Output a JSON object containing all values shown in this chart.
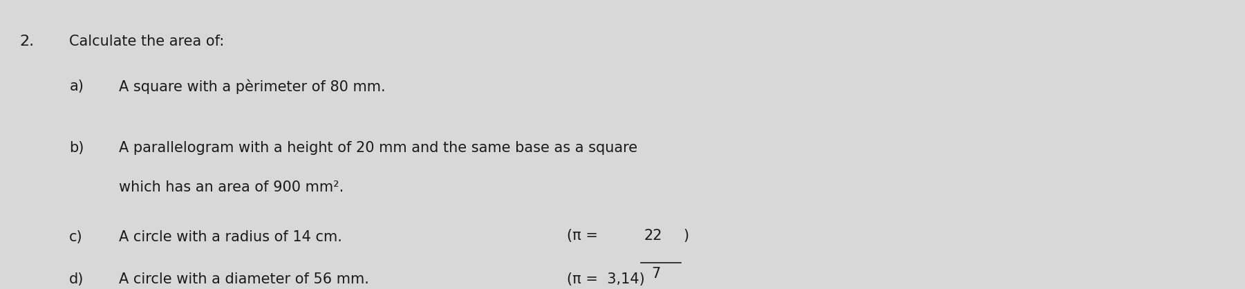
{
  "background_color": "#d8d8d8",
  "text_color": "#1a1a1a",
  "question_number": "2.",
  "heading": "Calculate the area of:",
  "items": [
    {
      "label": "a)",
      "line1": "A square with a pèrimeter of 80 mm."
    },
    {
      "label": "b)",
      "line1": "A parallelogram with a height of 20 mm and the same base as a square",
      "line2": "which has an area of 900 mm²."
    },
    {
      "label": "c)",
      "line1": "A circle with a radius of 14 cm.",
      "pi_note": "(π = 22/7)"
    },
    {
      "label": "d)",
      "line1": "A circle with a diameter of 56 mm.",
      "pi_note": "(π =  3,14)"
    }
  ],
  "font_size_main": 15,
  "font_size_number": 16,
  "font_family": "DejaVu Sans"
}
